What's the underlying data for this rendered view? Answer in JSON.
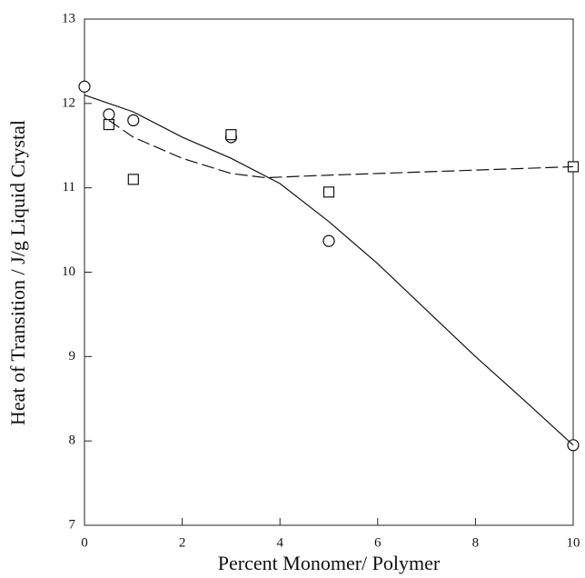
{
  "chart_data": {
    "type": "scatter",
    "x_label": "Percent Monomer/ Polymer",
    "y_label": "Heat of Transition / J/g Liquid Crystal",
    "xlim": [
      0,
      10
    ],
    "ylim": [
      7,
      13
    ],
    "xticks": [
      0,
      2,
      4,
      6,
      8,
      10
    ],
    "yticks": [
      7,
      8,
      9,
      10,
      11,
      12,
      13
    ],
    "series": [
      {
        "marker": "circle",
        "line": "none",
        "color": "#111111",
        "x": [
          0,
          0.5,
          1,
          3,
          5,
          10
        ],
        "values": [
          12.2,
          11.87,
          11.8,
          11.6,
          10.37,
          7.95
        ]
      },
      {
        "marker": "square",
        "line": "none",
        "color": "#111111",
        "x": [
          0.5,
          1,
          3,
          5,
          10
        ],
        "values": [
          11.75,
          11.1,
          11.63,
          10.95,
          11.25
        ]
      },
      {
        "marker": "none",
        "line": "solid",
        "color": "#111111",
        "x": [
          0,
          1,
          2,
          3,
          4,
          5,
          6,
          7,
          8,
          9,
          10
        ],
        "values": [
          12.1,
          11.9,
          11.6,
          11.35,
          11.05,
          10.6,
          10.1,
          9.55,
          9.0,
          8.48,
          7.95
        ]
      },
      {
        "marker": "none",
        "line": "dashed",
        "color": "#111111",
        "x": [
          0.5,
          1,
          2,
          3,
          3.7,
          5,
          10
        ],
        "values": [
          11.8,
          11.6,
          11.35,
          11.17,
          11.12,
          11.15,
          11.25
        ]
      }
    ]
  }
}
